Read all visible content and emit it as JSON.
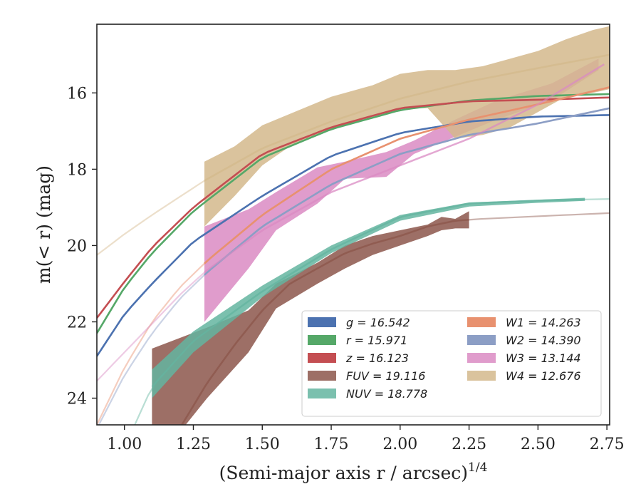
{
  "chart_data": {
    "type": "line",
    "xlabel": "(Semi-major axis r / arcsec)",
    "xlabel_sup": "1/4",
    "ylabel": "m(< r) (mag)",
    "xlim": [
      0.9,
      2.76
    ],
    "ylim": [
      24.7,
      14.2
    ],
    "y_inverted": true,
    "xticks": [
      1.0,
      1.25,
      1.5,
      1.75,
      2.0,
      2.25,
      2.5,
      2.75
    ],
    "xtick_labels": [
      "1.00",
      "1.25",
      "1.50",
      "1.75",
      "2.00",
      "2.25",
      "2.50",
      "2.75"
    ],
    "yticks": [
      16,
      18,
      20,
      22,
      24
    ],
    "ytick_labels": [
      "16",
      "18",
      "20",
      "22",
      "24"
    ],
    "grid": false,
    "legend_position": "lower-right",
    "series": [
      {
        "name": "g = 16.542",
        "color": "#4c72b0",
        "x": [
          0.9,
          1.0,
          1.1,
          1.25,
          1.5,
          1.75,
          2.0,
          2.25,
          2.5,
          2.76
        ],
        "y": [
          22.9,
          21.8,
          21.0,
          19.9,
          18.7,
          17.65,
          17.05,
          16.75,
          16.62,
          16.58
        ],
        "solid_from": 0.9,
        "solid_to": 2.76
      },
      {
        "name": "r = 15.971",
        "color": "#55a868",
        "x": [
          0.9,
          1.0,
          1.1,
          1.25,
          1.5,
          1.75,
          2.0,
          2.25,
          2.5,
          2.76
        ],
        "y": [
          22.3,
          21.1,
          20.2,
          19.1,
          17.7,
          16.95,
          16.45,
          16.2,
          16.08,
          16.03
        ],
        "solid_from": 0.9,
        "solid_to": 2.76
      },
      {
        "name": "z = 16.123",
        "color": "#c44e52",
        "x": [
          0.9,
          1.0,
          1.1,
          1.25,
          1.5,
          1.75,
          2.0,
          2.25,
          2.5,
          2.76
        ],
        "y": [
          21.9,
          20.95,
          20.05,
          19.0,
          17.6,
          16.9,
          16.4,
          16.22,
          16.18,
          16.12
        ],
        "solid_from": 0.9,
        "solid_to": 2.76
      },
      {
        "name": "FUV = 19.116",
        "color": "#8c564b",
        "x": [
          1.1,
          1.2,
          1.3,
          1.4,
          1.5,
          1.6,
          1.7,
          1.8,
          1.9,
          2.0,
          2.1,
          2.2,
          2.3,
          2.45,
          2.6,
          2.76
        ],
        "y": [
          26.0,
          24.8,
          23.6,
          22.6,
          21.7,
          21.0,
          20.6,
          20.2,
          19.95,
          19.75,
          19.5,
          19.35,
          19.3,
          19.25,
          19.2,
          19.15
        ],
        "band": [
          [
            1.1,
            22.7,
            25.8
          ],
          [
            1.3,
            22.15,
            24.0
          ],
          [
            1.45,
            21.7,
            22.8
          ],
          [
            1.55,
            21.0,
            21.65
          ],
          [
            1.7,
            20.45,
            21.0
          ],
          [
            1.8,
            20.0,
            20.6
          ],
          [
            1.9,
            19.75,
            20.25
          ],
          [
            2.0,
            19.6,
            20.0
          ],
          [
            2.1,
            19.45,
            19.75
          ],
          [
            2.15,
            19.25,
            19.6
          ],
          [
            2.2,
            19.3,
            19.55
          ],
          [
            2.25,
            19.1,
            19.55
          ]
        ],
        "solid_from": 1.1,
        "solid_to": 2.25
      },
      {
        "name": "NUV = 18.778",
        "color": "#64b5a0",
        "x": [
          0.9,
          1.0,
          1.1,
          1.25,
          1.5,
          1.75,
          2.0,
          2.25,
          2.5,
          2.76
        ],
        "y": [
          26.5,
          25.3,
          23.7,
          22.5,
          21.2,
          20.1,
          19.25,
          18.9,
          18.82,
          18.78
        ],
        "band": [
          [
            1.1,
            23.25,
            24.0
          ],
          [
            1.25,
            22.25,
            22.8
          ],
          [
            1.5,
            21.05,
            21.35
          ],
          [
            1.75,
            20.0,
            20.2
          ],
          [
            2.0,
            19.2,
            19.35
          ],
          [
            2.25,
            18.87,
            18.98
          ],
          [
            2.5,
            18.8,
            18.88
          ],
          [
            2.67,
            18.75,
            18.83
          ]
        ],
        "solid_from": 1.1,
        "solid_to": 2.67
      },
      {
        "name": "W1 = 14.263",
        "color": "#e8916f",
        "x": [
          0.9,
          1.0,
          1.1,
          1.2,
          1.3,
          1.5,
          1.75,
          2.0,
          2.25,
          2.5,
          2.76
        ],
        "y": [
          24.7,
          23.2,
          22.0,
          21.1,
          20.4,
          19.2,
          18.0,
          17.2,
          16.7,
          16.3,
          15.85
        ],
        "solid_from": 1.29,
        "solid_to": 2.76
      },
      {
        "name": "W2 = 14.390",
        "color": "#8c9ec5",
        "x": [
          0.9,
          1.0,
          1.1,
          1.2,
          1.3,
          1.5,
          1.75,
          2.0,
          2.25,
          2.5,
          2.76
        ],
        "y": [
          24.8,
          23.4,
          22.3,
          21.4,
          20.7,
          19.5,
          18.4,
          17.6,
          17.1,
          16.8,
          16.4
        ],
        "solid_from": 1.29,
        "solid_to": 2.76
      },
      {
        "name": "W3 = 13.144",
        "color": "#da8bc3",
        "x": [
          0.9,
          1.0,
          1.2,
          1.29,
          1.5,
          1.75,
          2.0,
          2.25,
          2.5,
          2.74
        ],
        "y": [
          23.55,
          22.8,
          21.3,
          20.7,
          19.6,
          18.6,
          17.9,
          17.2,
          16.3,
          15.25
        ],
        "band": [
          [
            1.29,
            19.5,
            22.0
          ],
          [
            1.45,
            19.05,
            20.6
          ],
          [
            1.55,
            18.6,
            19.6
          ],
          [
            1.7,
            17.95,
            18.9
          ],
          [
            1.8,
            17.8,
            18.25
          ],
          [
            1.95,
            17.55,
            18.2
          ],
          [
            2.05,
            17.25,
            17.6
          ],
          [
            2.2,
            16.7,
            17.15
          ],
          [
            2.35,
            16.2,
            16.7
          ],
          [
            2.55,
            15.75,
            16.2
          ],
          [
            2.72,
            15.1,
            15.4
          ]
        ],
        "solid_from": 1.29,
        "solid_to": 2.74
      },
      {
        "name": "W4 = 12.676",
        "color": "#d4b98c",
        "x": [
          0.9,
          1.0,
          1.1,
          1.29,
          1.5,
          1.75,
          2.0,
          2.25,
          2.5,
          2.76
        ],
        "y": [
          20.25,
          19.7,
          19.2,
          18.3,
          17.45,
          16.75,
          16.15,
          15.7,
          15.35,
          15.0
        ],
        "band": [
          [
            1.29,
            17.8,
            19.5
          ],
          [
            1.4,
            17.4,
            18.7
          ],
          [
            1.5,
            16.85,
            17.9
          ],
          [
            1.6,
            16.55,
            17.4
          ],
          [
            1.75,
            16.1,
            16.95
          ],
          [
            1.9,
            15.8,
            16.6
          ],
          [
            2.0,
            15.5,
            16.4
          ],
          [
            2.1,
            15.4,
            16.4
          ],
          [
            2.2,
            15.4,
            17.2
          ],
          [
            2.3,
            15.3,
            17.1
          ],
          [
            2.4,
            15.1,
            16.9
          ],
          [
            2.5,
            14.9,
            16.5
          ],
          [
            2.6,
            14.6,
            16.1
          ],
          [
            2.7,
            14.35,
            16.0
          ],
          [
            2.76,
            14.25,
            15.9
          ]
        ],
        "solid_from": 1.29,
        "solid_to": 2.76
      }
    ]
  }
}
